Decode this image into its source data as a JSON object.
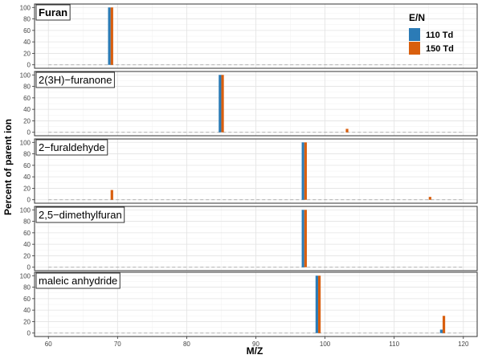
{
  "chart_data": {
    "type": "bar",
    "xlabel": "M/Z",
    "ylabel": "Percent of parent ion",
    "xlim": [
      58,
      122
    ],
    "ylim": [
      -6,
      106
    ],
    "x_ticks": [
      60,
      70,
      80,
      90,
      100,
      110,
      120
    ],
    "y_ticks": [
      0,
      20,
      40,
      60,
      80,
      100
    ],
    "grid": true,
    "baseline": 0,
    "legend": {
      "title": "E/N",
      "position": "top-right",
      "entries": [
        {
          "label": "110 Td",
          "color": "#2b7bb6"
        },
        {
          "label": "150 Td",
          "color": "#d95f0e"
        }
      ]
    },
    "series_names": [
      "110 Td",
      "150 Td"
    ],
    "panels": [
      {
        "label": "Furan",
        "label_bold": true,
        "bars": [
          {
            "series": "110 Td",
            "x": 69,
            "value": 100
          },
          {
            "series": "150 Td",
            "x": 69,
            "value": 100
          }
        ]
      },
      {
        "label": "2(3H)−furanone",
        "label_bold": false,
        "bars": [
          {
            "series": "110 Td",
            "x": 85,
            "value": 100
          },
          {
            "series": "150 Td",
            "x": 85,
            "value": 100
          },
          {
            "series": "150 Td",
            "x": 103,
            "value": 6
          }
        ]
      },
      {
        "label": "2−furaldehyde",
        "label_bold": false,
        "bars": [
          {
            "series": "110 Td",
            "x": 97,
            "value": 100
          },
          {
            "series": "150 Td",
            "x": 97,
            "value": 100
          },
          {
            "series": "150 Td",
            "x": 69,
            "value": 17
          },
          {
            "series": "150 Td",
            "x": 115,
            "value": 5
          }
        ]
      },
      {
        "label": "2,5−dimethylfuran",
        "label_bold": false,
        "bars": [
          {
            "series": "110 Td",
            "x": 97,
            "value": 100
          },
          {
            "series": "150 Td",
            "x": 97,
            "value": 100
          }
        ]
      },
      {
        "label": "maleic anhydride",
        "label_bold": false,
        "bars": [
          {
            "series": "110 Td",
            "x": 99,
            "value": 100
          },
          {
            "series": "150 Td",
            "x": 99,
            "value": 100
          },
          {
            "series": "110 Td",
            "x": 117,
            "value": 6
          },
          {
            "series": "150 Td",
            "x": 117,
            "value": 30
          }
        ]
      }
    ]
  }
}
